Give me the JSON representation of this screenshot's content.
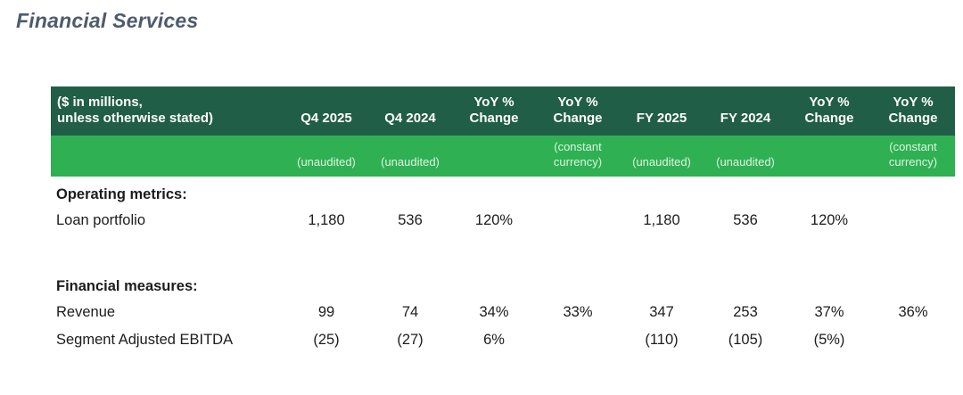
{
  "page": {
    "title": "Financial Services"
  },
  "colors": {
    "header_dark_bg": "#215e48",
    "header_light_bg": "#2fb053",
    "title_text": "#4e5b6e"
  },
  "table": {
    "unit_note": "($ in millions,\nunless otherwise stated)",
    "columns": [
      {
        "label": "Q4 2025",
        "sub": "(unaudited)"
      },
      {
        "label": "Q4 2024",
        "sub": "(unaudited)"
      },
      {
        "label": "YoY %\nChange",
        "sub": ""
      },
      {
        "label": "YoY %\nChange",
        "sub": "(constant\ncurrency)"
      },
      {
        "label": "FY 2025",
        "sub": "(unaudited)"
      },
      {
        "label": "FY 2024",
        "sub": "(unaudited)"
      },
      {
        "label": "YoY %\nChange",
        "sub": ""
      },
      {
        "label": "YoY %\nChange",
        "sub": "(constant\ncurrency)"
      }
    ],
    "sections": [
      {
        "title": "Operating metrics:",
        "rows": [
          {
            "label": "Loan portfolio",
            "values": [
              "1,180",
              "536",
              "120%",
              "",
              "1,180",
              "536",
              "120%",
              ""
            ]
          }
        ]
      },
      {
        "title": "Financial measures:",
        "rows": [
          {
            "label": "Revenue",
            "values": [
              "99",
              "74",
              "34%",
              "33%",
              "347",
              "253",
              "37%",
              "36%"
            ]
          },
          {
            "label": "Segment Adjusted EBITDA",
            "values": [
              "(25)",
              "(27)",
              "6%",
              "",
              "(110)",
              "(105)",
              "(5%)",
              ""
            ]
          }
        ]
      }
    ]
  }
}
